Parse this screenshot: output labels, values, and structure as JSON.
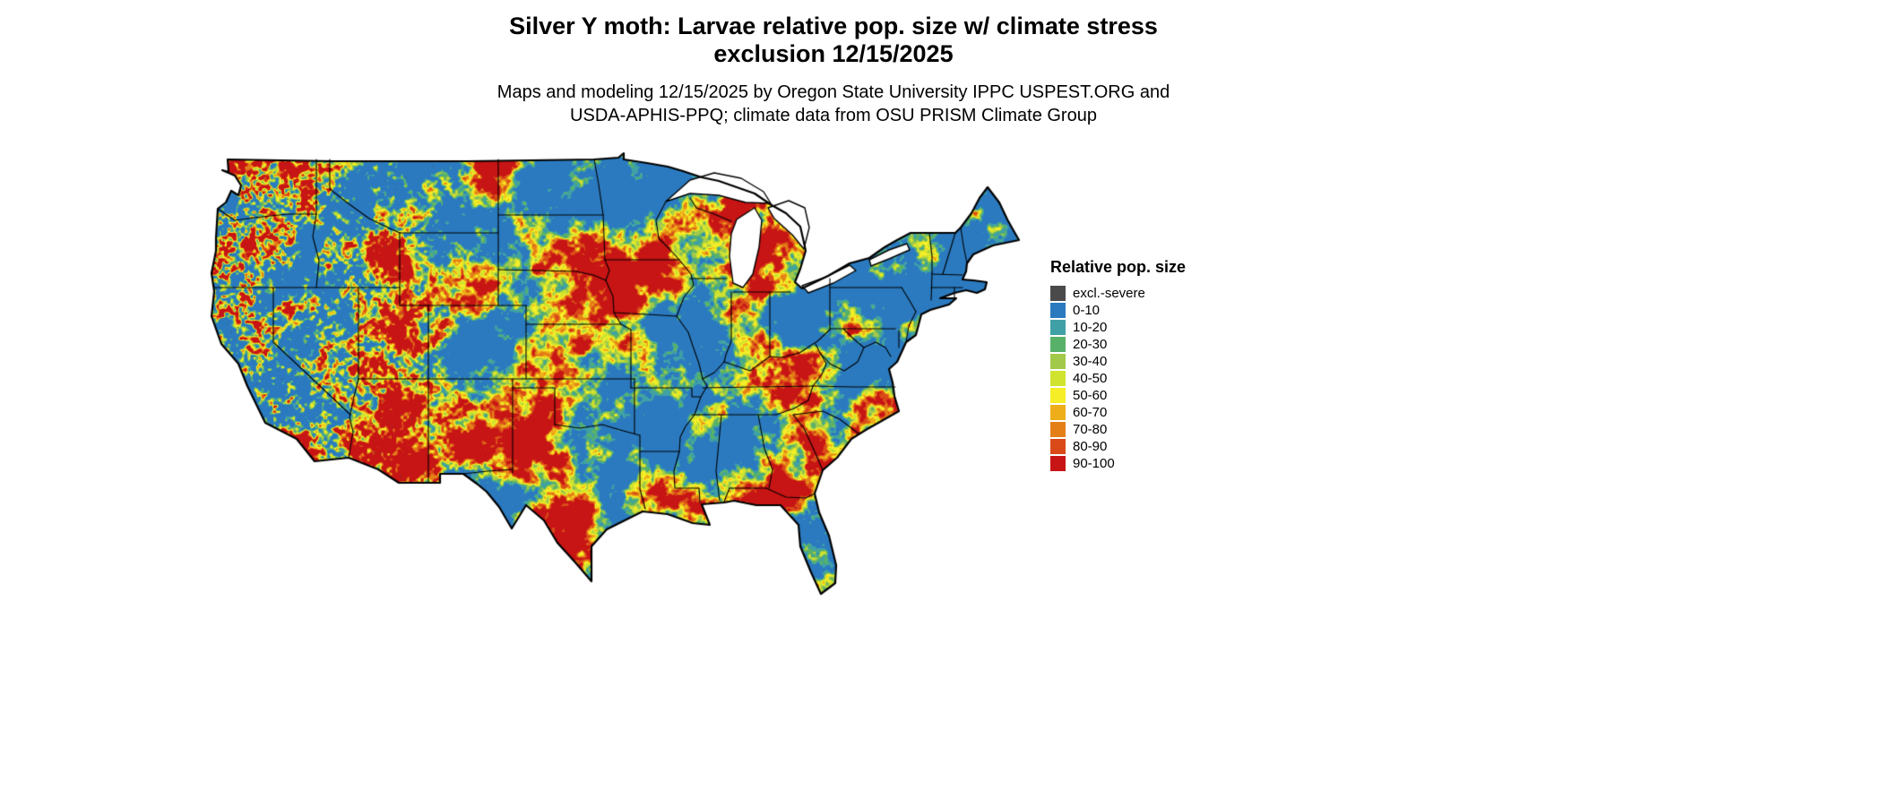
{
  "title": {
    "line1": "Silver Y moth: Larvae relative pop. size w/ climate stress",
    "line2": "exclusion 12/15/2025"
  },
  "subtitle": {
    "line1": "Maps and modeling 12/15/2025 by Oregon State University IPPC USPEST.ORG and",
    "line2": "USDA-APHIS-PPQ; climate data from OSU PRISM Climate Group"
  },
  "map": {
    "description": "Contiguous United States raster map of Silver Y moth larvae relative population size",
    "outline_color": "#000000",
    "water_color": "#ffffff"
  },
  "legend": {
    "title": "Relative pop. size",
    "items": [
      {
        "label": "excl.-severe",
        "color": "#4a4a4a"
      },
      {
        "label": "0-10",
        "color": "#2b7abf"
      },
      {
        "label": "10-20",
        "color": "#3fa1a6"
      },
      {
        "label": "20-30",
        "color": "#58b168"
      },
      {
        "label": "30-40",
        "color": "#a2c94a"
      },
      {
        "label": "40-50",
        "color": "#cfe32f"
      },
      {
        "label": "50-60",
        "color": "#f6ee26"
      },
      {
        "label": "60-70",
        "color": "#eeae19"
      },
      {
        "label": "70-80",
        "color": "#e47f17"
      },
      {
        "label": "80-90",
        "color": "#d94a18"
      },
      {
        "label": "90-100",
        "color": "#c71414"
      }
    ]
  }
}
